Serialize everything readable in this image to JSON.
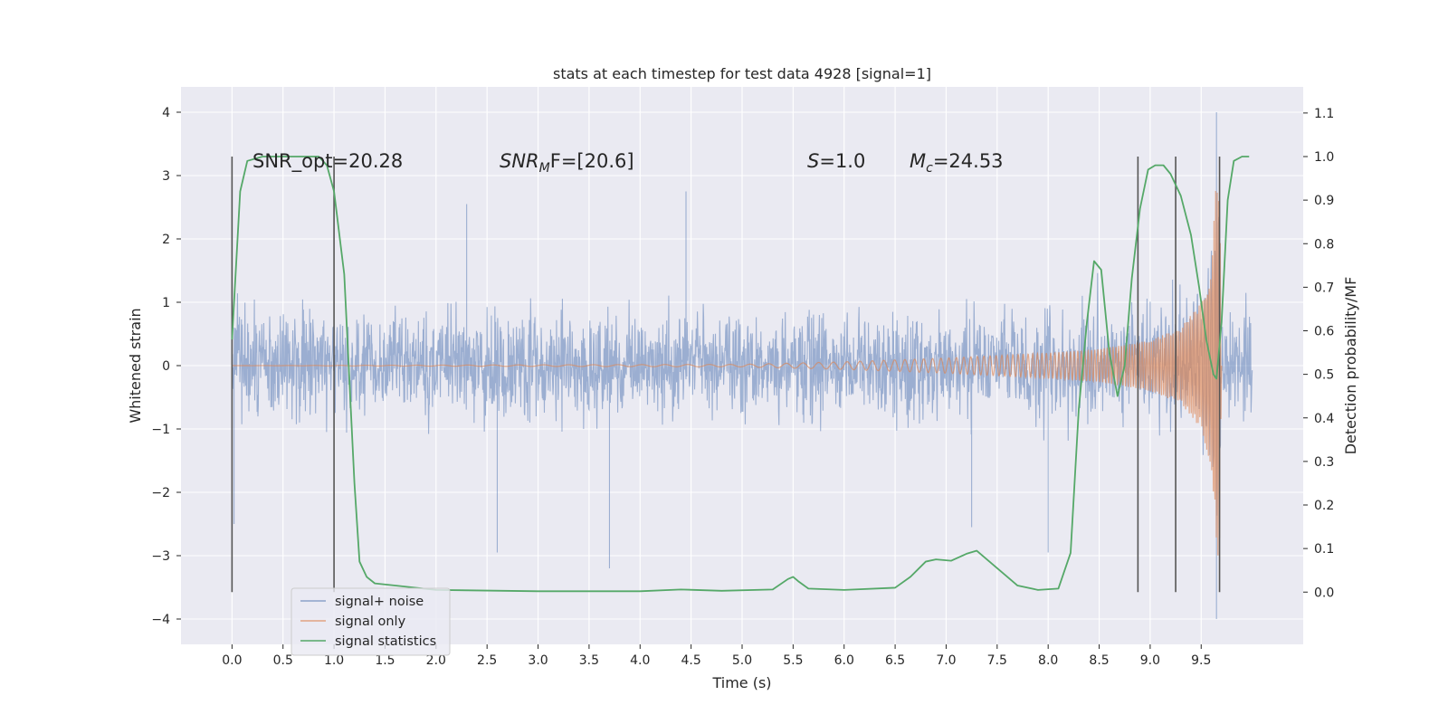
{
  "chart_data": {
    "type": "line",
    "title": "stats at each timestep for test data 4928 [signal=1]",
    "xlabel": "Time (s)",
    "ylabel": "Whitened strain",
    "y2label": "Detection probability/MF",
    "xlim": [
      -0.5,
      10.5
    ],
    "ylim": [
      -4.4,
      4.4
    ],
    "y2lim": [
      -0.12,
      1.16
    ],
    "xticks": [
      "0.0",
      "0.5",
      "1.0",
      "1.5",
      "2.0",
      "2.5",
      "3.0",
      "3.5",
      "4.0",
      "4.5",
      "5.0",
      "5.5",
      "6.0",
      "6.5",
      "7.0",
      "7.5",
      "8.0",
      "8.5",
      "9.0",
      "9.5"
    ],
    "yticks": [
      "4",
      "3",
      "2",
      "1",
      "0",
      "−1",
      "−2",
      "−3",
      "−4"
    ],
    "y2ticks": [
      "1.1",
      "1.0",
      "0.9",
      "0.8",
      "0.7",
      "0.6",
      "0.5",
      "0.4",
      "0.3",
      "0.2",
      "0.1",
      "0.0"
    ],
    "grid": true,
    "legend_position": "lower-left",
    "annotations": {
      "snr_opt": "SNR_opt=20.28",
      "snr_mf_sym": "SNR",
      "snr_mf_sub": "M",
      "snr_mf_rest": "F=[20.6]",
      "s_sym": "S",
      "s_rest": "=1.0",
      "mc_sym": "M",
      "mc_sub": "c",
      "mc_rest": "=24.53"
    },
    "series": [
      {
        "name": "signal+ noise",
        "color": "#4c72b0",
        "x_range": [
          0.0,
          10.0
        ],
        "typical_amplitude": 1.2,
        "peak_values": [
          {
            "x": 9.65,
            "y": 4.0
          },
          {
            "x": 9.65,
            "y": -4.0
          },
          {
            "x": 0.02,
            "y": -2.5
          },
          {
            "x": 2.3,
            "y": 2.55
          },
          {
            "x": 2.6,
            "y": -2.95
          },
          {
            "x": 3.7,
            "y": -3.2
          },
          {
            "x": 4.45,
            "y": 2.75
          },
          {
            "x": 7.25,
            "y": -2.55
          },
          {
            "x": 8.0,
            "y": -2.95
          }
        ]
      },
      {
        "name": "signal only",
        "color": "#dd8452",
        "envelope": [
          {
            "x": 0.0,
            "y": 0.0
          },
          {
            "x": 5.0,
            "y": 0.02
          },
          {
            "x": 6.0,
            "y": 0.06
          },
          {
            "x": 7.0,
            "y": 0.12
          },
          {
            "x": 8.0,
            "y": 0.2
          },
          {
            "x": 8.5,
            "y": 0.26
          },
          {
            "x": 9.0,
            "y": 0.4
          },
          {
            "x": 9.3,
            "y": 0.6
          },
          {
            "x": 9.5,
            "y": 1.0
          },
          {
            "x": 9.6,
            "y": 1.6
          },
          {
            "x": 9.65,
            "y": 3.0
          },
          {
            "x": 9.68,
            "y": 3.0
          },
          {
            "x": 9.7,
            "y": 0.0
          }
        ]
      },
      {
        "name": "signal statistics",
        "color": "#55a868",
        "axis": "right",
        "points": [
          {
            "x": 0.0,
            "y": 0.58
          },
          {
            "x": 0.08,
            "y": 0.92
          },
          {
            "x": 0.15,
            "y": 0.99
          },
          {
            "x": 0.3,
            "y": 1.0
          },
          {
            "x": 0.85,
            "y": 1.0
          },
          {
            "x": 0.93,
            "y": 0.98
          },
          {
            "x": 1.0,
            "y": 0.92
          },
          {
            "x": 1.1,
            "y": 0.73
          },
          {
            "x": 1.2,
            "y": 0.25
          },
          {
            "x": 1.25,
            "y": 0.07
          },
          {
            "x": 1.32,
            "y": 0.035
          },
          {
            "x": 1.4,
            "y": 0.02
          },
          {
            "x": 1.6,
            "y": 0.015
          },
          {
            "x": 2.0,
            "y": 0.005
          },
          {
            "x": 3.0,
            "y": 0.002
          },
          {
            "x": 4.0,
            "y": 0.002
          },
          {
            "x": 4.4,
            "y": 0.006
          },
          {
            "x": 4.8,
            "y": 0.003
          },
          {
            "x": 5.3,
            "y": 0.006
          },
          {
            "x": 5.45,
            "y": 0.03
          },
          {
            "x": 5.5,
            "y": 0.035
          },
          {
            "x": 5.55,
            "y": 0.025
          },
          {
            "x": 5.65,
            "y": 0.008
          },
          {
            "x": 6.0,
            "y": 0.005
          },
          {
            "x": 6.5,
            "y": 0.01
          },
          {
            "x": 6.65,
            "y": 0.035
          },
          {
            "x": 6.8,
            "y": 0.07
          },
          {
            "x": 6.9,
            "y": 0.075
          },
          {
            "x": 7.05,
            "y": 0.072
          },
          {
            "x": 7.2,
            "y": 0.088
          },
          {
            "x": 7.3,
            "y": 0.095
          },
          {
            "x": 7.5,
            "y": 0.055
          },
          {
            "x": 7.7,
            "y": 0.015
          },
          {
            "x": 7.9,
            "y": 0.005
          },
          {
            "x": 8.1,
            "y": 0.008
          },
          {
            "x": 8.22,
            "y": 0.09
          },
          {
            "x": 8.3,
            "y": 0.42
          },
          {
            "x": 8.38,
            "y": 0.62
          },
          {
            "x": 8.45,
            "y": 0.76
          },
          {
            "x": 8.52,
            "y": 0.74
          },
          {
            "x": 8.6,
            "y": 0.55
          },
          {
            "x": 8.68,
            "y": 0.45
          },
          {
            "x": 8.75,
            "y": 0.52
          },
          {
            "x": 8.82,
            "y": 0.72
          },
          {
            "x": 8.9,
            "y": 0.88
          },
          {
            "x": 8.98,
            "y": 0.97
          },
          {
            "x": 9.05,
            "y": 0.98
          },
          {
            "x": 9.13,
            "y": 0.98
          },
          {
            "x": 9.2,
            "y": 0.96
          },
          {
            "x": 9.3,
            "y": 0.91
          },
          {
            "x": 9.4,
            "y": 0.82
          },
          {
            "x": 9.48,
            "y": 0.7
          },
          {
            "x": 9.55,
            "y": 0.58
          },
          {
            "x": 9.62,
            "y": 0.5
          },
          {
            "x": 9.65,
            "y": 0.49
          },
          {
            "x": 9.7,
            "y": 0.62
          },
          {
            "x": 9.76,
            "y": 0.9
          },
          {
            "x": 9.82,
            "y": 0.99
          },
          {
            "x": 9.9,
            "y": 1.0
          },
          {
            "x": 9.97,
            "y": 1.0
          }
        ]
      }
    ],
    "vertical_markers": [
      0.0,
      1.0,
      8.88,
      9.25,
      9.68
    ]
  }
}
